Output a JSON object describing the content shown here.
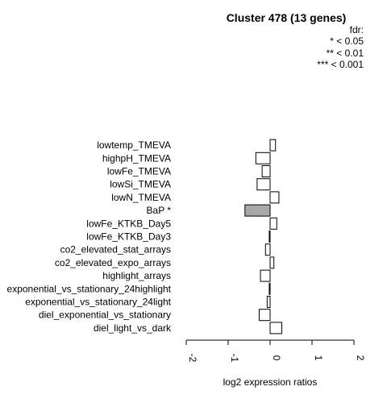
{
  "chart_data": {
    "type": "bar",
    "orientation": "horizontal",
    "title": "Cluster 478 (13 genes)",
    "legend": {
      "title": "fdr:",
      "entries": [
        "* < 0.05",
        "** < 0.01",
        "*** < 0.001"
      ],
      "placement": "top-right"
    },
    "xlabel": "log2 expression ratios",
    "xlim": [
      -2,
      2
    ],
    "xticks": [
      "-2",
      "-1",
      "0",
      "1",
      "2"
    ],
    "tick_values": [
      -2,
      -1,
      0,
      1,
      2
    ],
    "categories": [
      "lowtemp_TMEVA",
      "highpH_TMEVA",
      "lowFe_TMEVA",
      "lowSi_TMEVA",
      "lowN_TMEVA",
      "BaP *",
      "lowFe_KTKB_Day5",
      "lowFe_KTKB_Day3",
      "co2_elevated_stat_arrays",
      "co2_elevated_expo_arrays",
      "highlight_arrays",
      "exponential_vs_stationary_24highlight",
      "exponential_vs_stationary_24light",
      "diel_exponential_vs_stationary",
      "diel_light_vs_dark"
    ],
    "values": [
      0.13,
      -0.34,
      -0.19,
      -0.31,
      0.21,
      -0.6,
      0.16,
      -0.02,
      -0.11,
      0.09,
      -0.23,
      -0.02,
      -0.07,
      -0.26,
      0.28
    ],
    "highlighted": [
      false,
      false,
      false,
      false,
      false,
      true,
      false,
      false,
      false,
      false,
      false,
      false,
      false,
      false,
      false
    ],
    "colors": {
      "bar": "#ffffff",
      "highlight": "#a8a8a8",
      "stroke": "#000000"
    }
  }
}
